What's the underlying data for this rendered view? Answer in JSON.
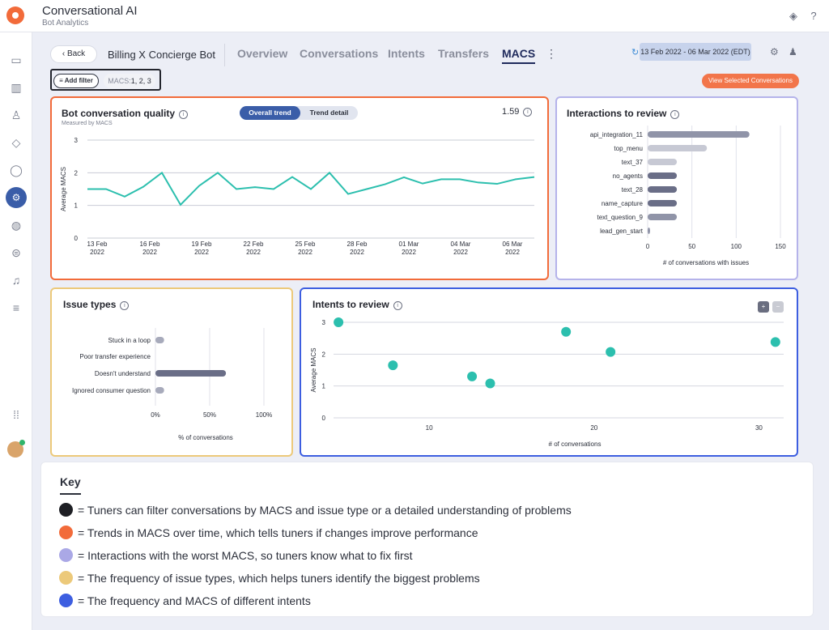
{
  "app": {
    "title": "Conversational AI",
    "subtitle": "Bot Analytics"
  },
  "header": {
    "back_label": "Back",
    "bot_name": "Billing X Concierge Bot",
    "tabs": [
      {
        "label": "Overview",
        "active": false
      },
      {
        "label": "Conversations",
        "active": false
      },
      {
        "label": "Intents",
        "active": false
      },
      {
        "label": "Transfers",
        "active": false
      },
      {
        "label": "MACS",
        "active": true
      }
    ],
    "date_range": "13 Feb 2022 - 06 Mar 2022 (EDT)",
    "refresh_icon": "refresh-icon",
    "settings_icon": "gear-icon",
    "user_icon": "user-settings-icon"
  },
  "filters": {
    "add_filter_label": "Add filter",
    "chip_key": "MACS:",
    "chip_value": "1, 2, 3",
    "view_selected_label": "View Selected Conversations"
  },
  "quality": {
    "title": "Bot conversation quality",
    "subtitle": "Measured by MACS",
    "toggle_overall": "Overall trend",
    "toggle_detail": "Trend detail",
    "value": "1.59"
  },
  "interactions": {
    "title": "Interactions to review"
  },
  "issues": {
    "title": "Issue types"
  },
  "intents": {
    "title": "Intents to review"
  },
  "chart_data": [
    {
      "type": "line",
      "title": "Bot conversation quality",
      "ylabel": "Average MACS",
      "ylim": [
        0,
        3
      ],
      "yticks": [
        "0",
        "1",
        "2",
        "3"
      ],
      "xticks": [
        "13 Feb\n2022",
        "16 Feb\n2022",
        "19 Feb\n2022",
        "22 Feb\n2022",
        "25 Feb\n2022",
        "28 Feb\n2022",
        "01 Mar\n2022",
        "04 Mar\n2022",
        "06 Mar\n2022"
      ],
      "x": [
        0,
        1,
        2,
        3,
        4,
        5,
        6,
        7,
        8,
        9,
        10,
        11,
        12,
        13,
        14,
        15,
        16,
        17,
        18,
        19,
        20,
        21,
        22,
        23,
        24
      ],
      "values": [
        1.5,
        1.5,
        1.27,
        1.57,
        2.0,
        1.02,
        1.6,
        2.0,
        1.5,
        1.56,
        1.5,
        1.87,
        1.5,
        2.0,
        1.35,
        1.5,
        1.65,
        1.86,
        1.67,
        1.8,
        1.8,
        1.7,
        1.66,
        1.8,
        1.87
      ],
      "color": "#2cbfae"
    },
    {
      "type": "bar",
      "orientation": "horizontal",
      "title": "Interactions to review",
      "categories": [
        "api_integration_11",
        "top_menu",
        "text_37",
        "no_agents",
        "text_28",
        "name_capture",
        "text_question_9",
        "lead_gen_start"
      ],
      "values": [
        115,
        67,
        33,
        33,
        33,
        33,
        33,
        2
      ],
      "colors": [
        "#9094a8",
        "#c7c9d4",
        "#c7c9d4",
        "#6a6e87",
        "#6a6e87",
        "#6a6e87",
        "#9094a8",
        "#9094a8"
      ],
      "xlabel": "# of conversations with issues",
      "xlim": [
        0,
        150
      ],
      "xticks": [
        "0",
        "50",
        "100",
        "150"
      ]
    },
    {
      "type": "bar",
      "orientation": "horizontal",
      "title": "Issue types",
      "categories": [
        "Stuck in a loop",
        "Poor transfer experience",
        "Doesn't understand",
        "Ignored consumer question"
      ],
      "values": [
        8,
        0,
        65,
        8
      ],
      "colors": [
        "#a7aabb",
        "#a7aabb",
        "#6a6e87",
        "#a7aabb"
      ],
      "xlabel": "% of conversations",
      "xlim": [
        0,
        100
      ],
      "xticks": [
        "0%",
        "50%",
        "100%"
      ]
    },
    {
      "type": "scatter",
      "title": "Intents to review",
      "xlabel": "# of conversations",
      "ylabel": "Average MACS",
      "xlim": [
        4.2,
        31.5
      ],
      "ylim": [
        0,
        3
      ],
      "xticks": [
        "10",
        "20",
        "30"
      ],
      "yticks": [
        "0",
        "1",
        "2",
        "3"
      ],
      "points": [
        {
          "x": 4.5,
          "y": 3.0
        },
        {
          "x": 7.8,
          "y": 1.65
        },
        {
          "x": 12.6,
          "y": 1.3
        },
        {
          "x": 13.7,
          "y": 1.08
        },
        {
          "x": 18.3,
          "y": 2.7
        },
        {
          "x": 21.0,
          "y": 2.07
        },
        {
          "x": 31.0,
          "y": 2.38
        }
      ],
      "color": "#2cbfae"
    }
  ],
  "key": {
    "title": "Key",
    "items": [
      {
        "color": "#1e1f24",
        "text": "= Tuners can filter conversations by MACS and issue type or a detailed understanding of problems"
      },
      {
        "color": "#f26b3a",
        "text": "= Trends in MACS over time, which tells tuners if changes improve performance"
      },
      {
        "color": "#aaa8e6",
        "text": "= Interactions with the worst MACS, so tuners know what to fix first"
      },
      {
        "color": "#ecc97a",
        "text": "= The frequency of issue types, which helps tuners identify the biggest problems"
      },
      {
        "color": "#3d5ee0",
        "text": "= The frequency and MACS of different intents"
      }
    ]
  }
}
